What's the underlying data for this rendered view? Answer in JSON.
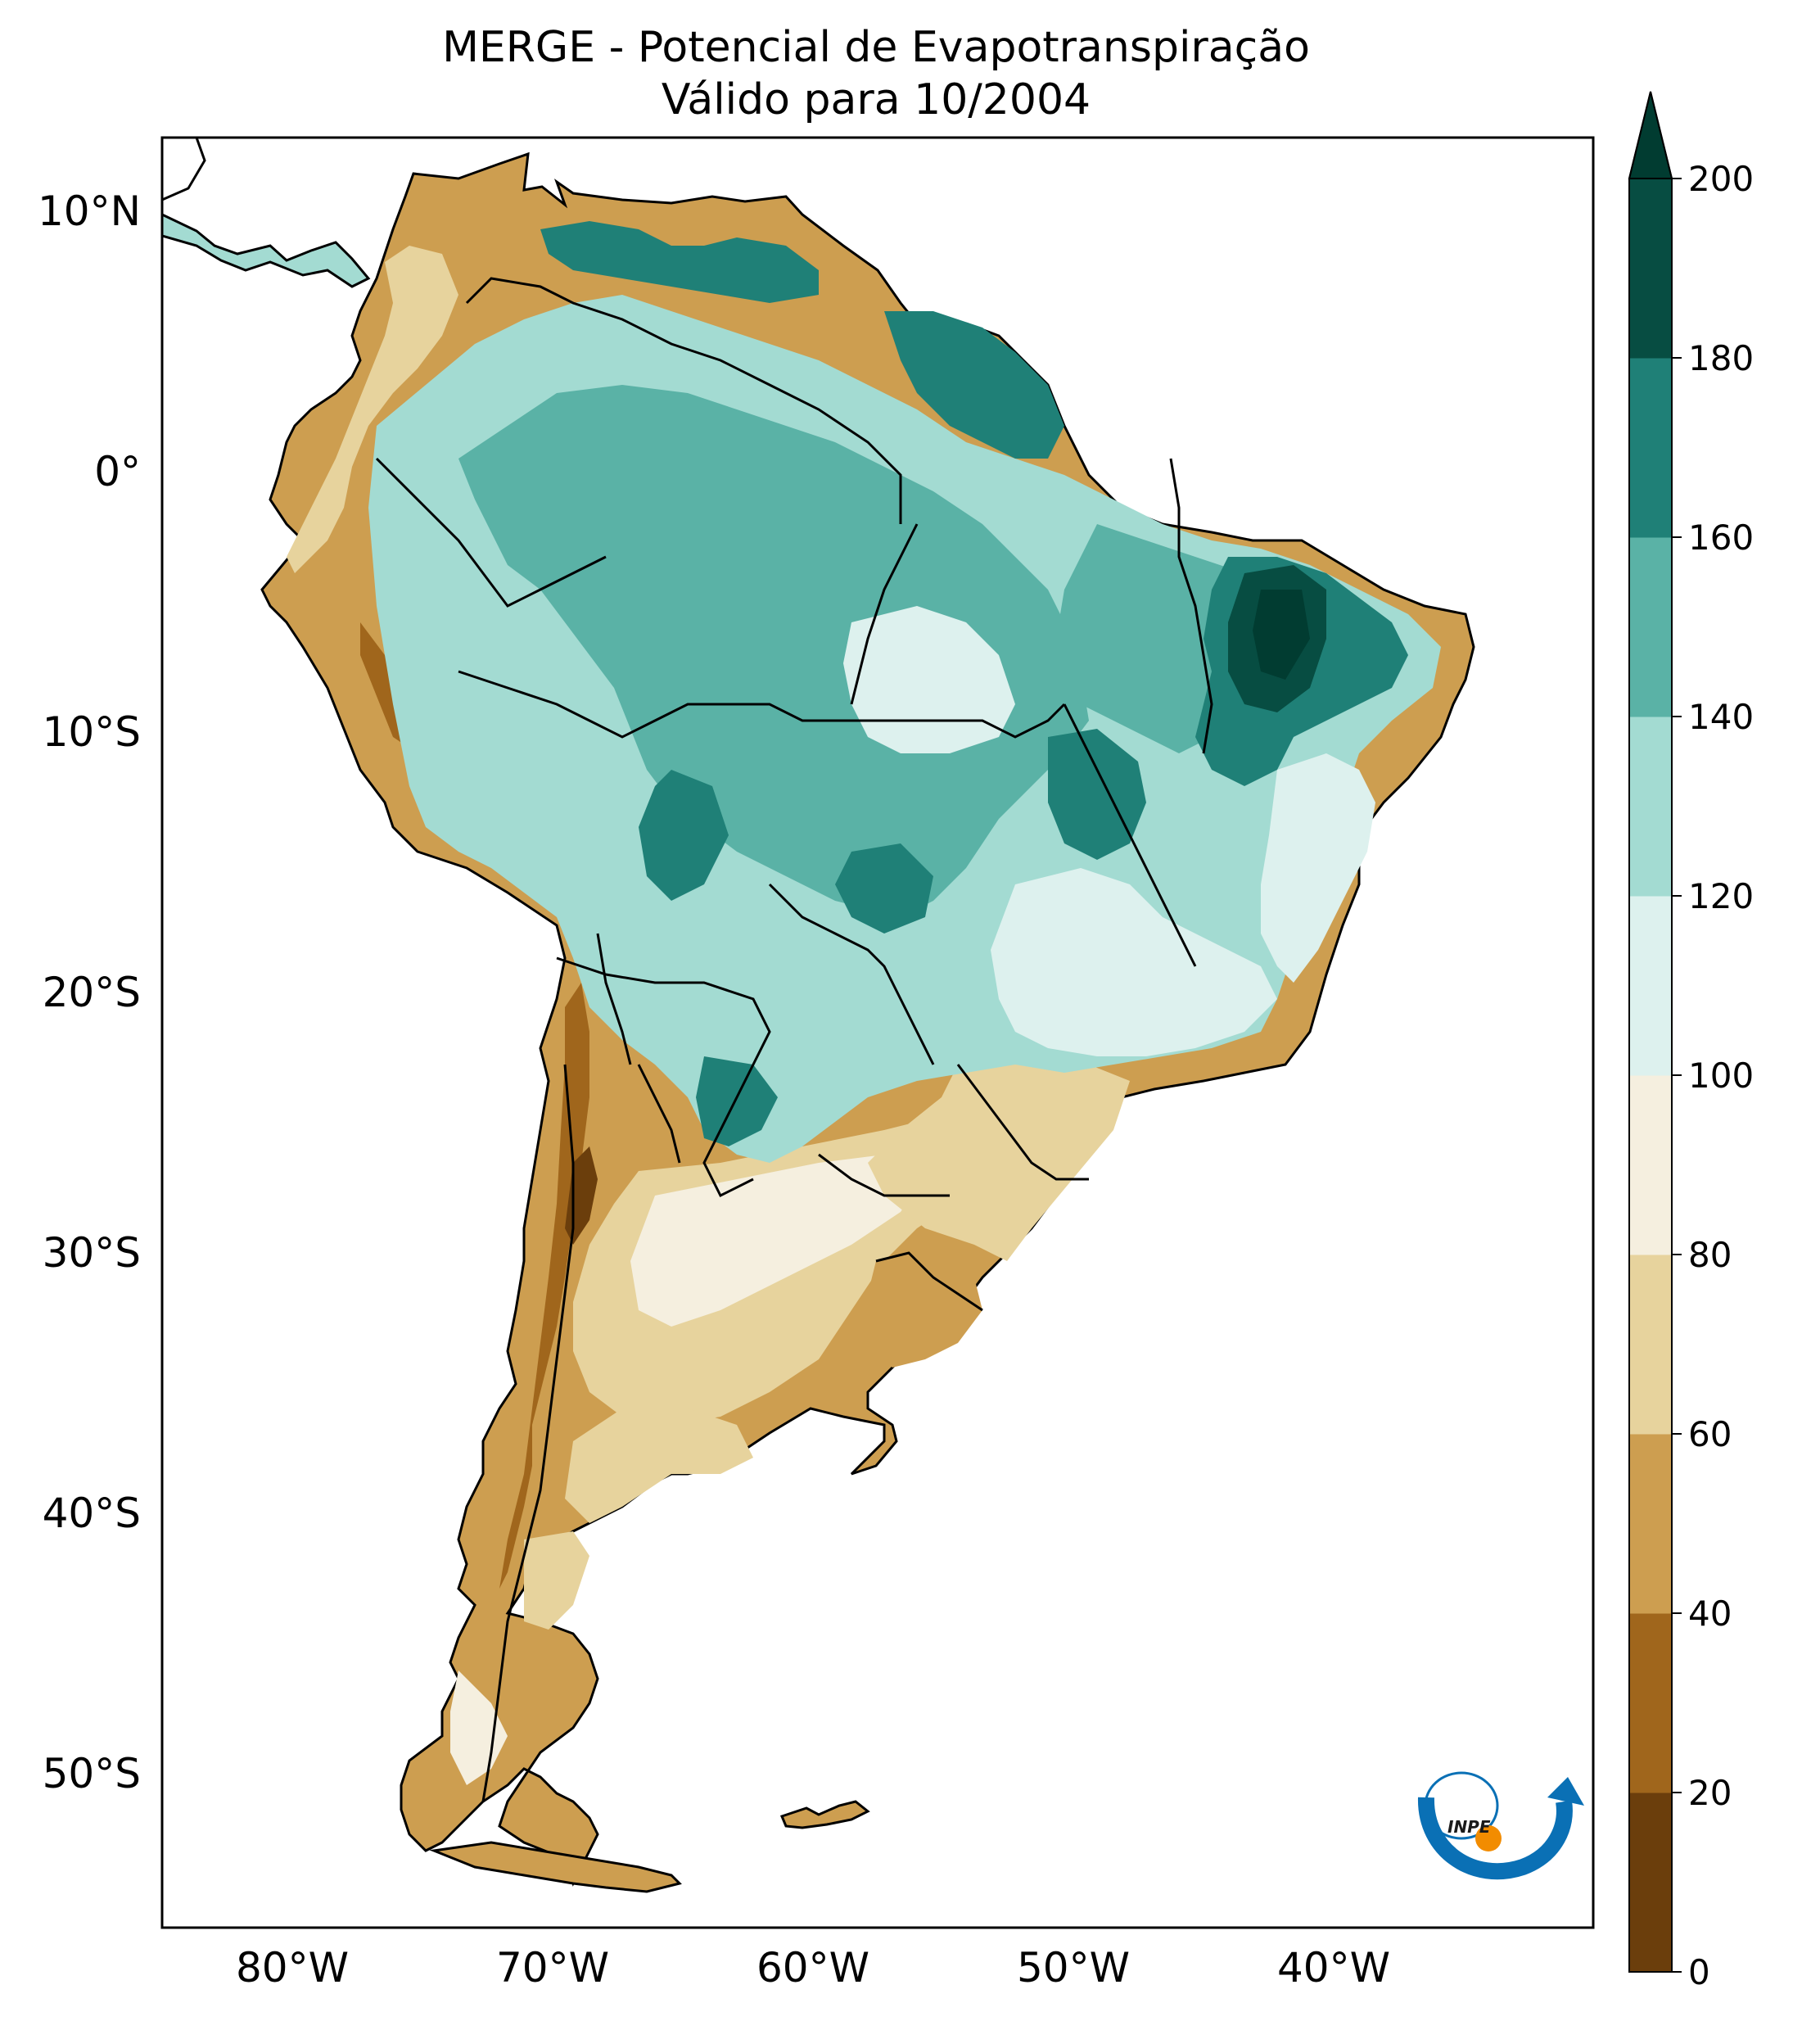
{
  "title": "MERGE - Potencial de Evapotranspiração",
  "subtitle": "Válido para 10/2004",
  "map": {
    "region": "South America",
    "lon_range": [
      -85,
      -30
    ],
    "lat_range": [
      -56,
      13
    ],
    "lat_ticks": [
      "10°N",
      "0°",
      "10°S",
      "20°S",
      "30°S",
      "40°S",
      "50°S"
    ],
    "lon_ticks": [
      "80°W",
      "70°W",
      "60°W",
      "50°W",
      "40°W"
    ],
    "borders": "country and Brazilian state borders (black)"
  },
  "colorbar": {
    "ticks": [
      "0",
      "20",
      "40",
      "60",
      "80",
      "100",
      "120",
      "140",
      "160",
      "180",
      "200"
    ],
    "colors": [
      "#6b3e0c",
      "#a0661c",
      "#cd9e50",
      "#e7d39d",
      "#f5efdf",
      "#ddf1ee",
      "#a3dbd2",
      "#5ab2a6",
      "#1f8077",
      "#074d42"
    ],
    "extend": "max",
    "extend_color": "#013c31"
  },
  "logo": {
    "text": "INPE"
  }
}
